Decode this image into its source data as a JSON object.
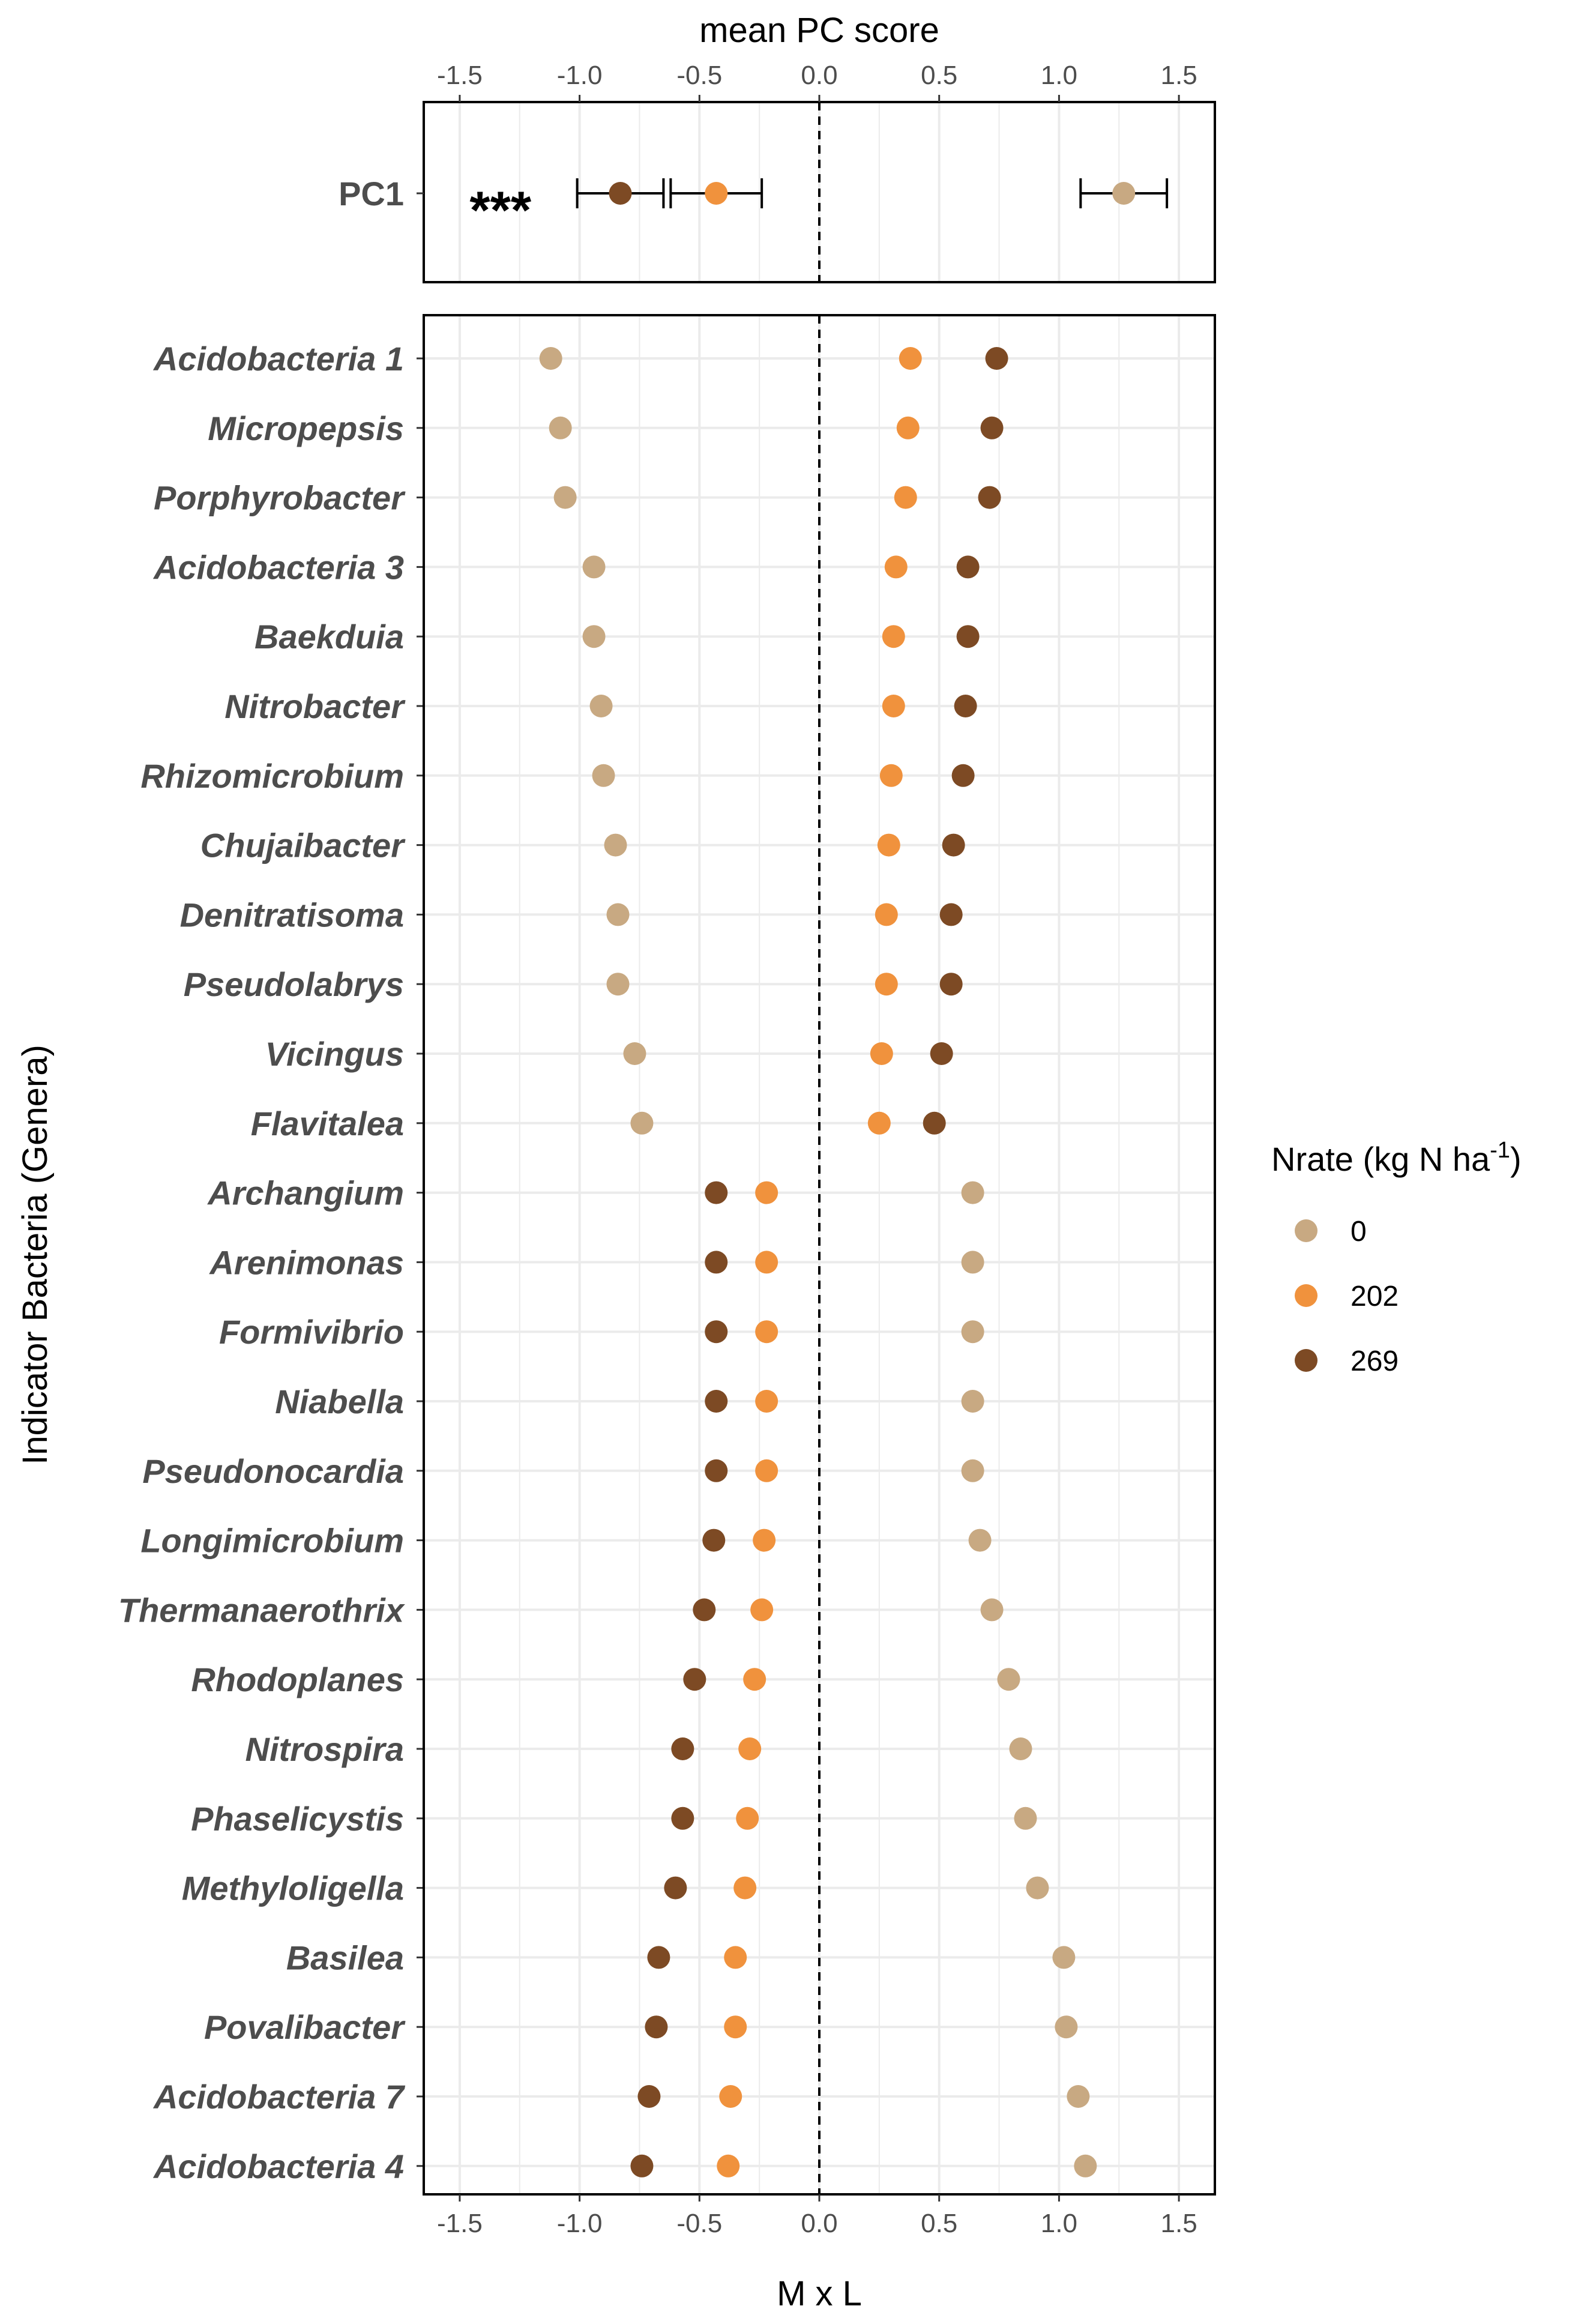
{
  "colors": {
    "n0": "#c8a982",
    "n202": "#f0923d",
    "n269": "#7d4a24",
    "grid": "#ebebeb",
    "axis_text": "#4d4d4d"
  },
  "chart_data": {
    "type": "scatter",
    "top_axis_title": "mean PC score",
    "bottom_axis_title": "M x L",
    "y_axis_title": "Indicator Bacteria (Genera)",
    "xlim": [
      -1.65,
      1.65
    ],
    "ticks": [
      -1.5,
      -1.0,
      -0.5,
      0.0,
      0.5,
      1.0,
      1.5
    ],
    "tick_labels": [
      "-1.5",
      "-1.0",
      "-0.5",
      "0.0",
      "0.5",
      "1.0",
      "1.5"
    ],
    "reference_line_x": 0.0,
    "legend": {
      "title_main": "Nrate (kg N ha",
      "title_sup": "-1",
      "title_end": ")",
      "entries": [
        {
          "label": "0",
          "color_key": "n0"
        },
        {
          "label": "202",
          "color_key": "n202"
        },
        {
          "label": "269",
          "color_key": "n269"
        }
      ]
    },
    "pc_panel": {
      "label": "PC1",
      "significance": "***",
      "points": [
        {
          "series": "0",
          "mean": 1.27,
          "lo": 1.09,
          "hi": 1.45
        },
        {
          "series": "202",
          "mean": -0.43,
          "lo": -0.62,
          "hi": -0.24
        },
        {
          "series": "269",
          "mean": -0.83,
          "lo": -1.01,
          "hi": -0.65
        }
      ]
    },
    "genera": [
      {
        "name": "Acidobacteria 1",
        "n0": -1.12,
        "n202": 0.38,
        "n269": 0.74
      },
      {
        "name": "Micropepsis",
        "n0": -1.08,
        "n202": 0.37,
        "n269": 0.72
      },
      {
        "name": "Porphyrobacter",
        "n0": -1.06,
        "n202": 0.36,
        "n269": 0.71
      },
      {
        "name": "Acidobacteria 3",
        "n0": -0.94,
        "n202": 0.32,
        "n269": 0.62
      },
      {
        "name": "Baekduia",
        "n0": -0.94,
        "n202": 0.31,
        "n269": 0.62
      },
      {
        "name": "Nitrobacter",
        "n0": -0.91,
        "n202": 0.31,
        "n269": 0.61
      },
      {
        "name": "Rhizomicrobium",
        "n0": -0.9,
        "n202": 0.3,
        "n269": 0.6
      },
      {
        "name": "Chujaibacter",
        "n0": -0.85,
        "n202": 0.29,
        "n269": 0.56
      },
      {
        "name": "Denitratisoma",
        "n0": -0.84,
        "n202": 0.28,
        "n269": 0.55
      },
      {
        "name": "Pseudolabrys",
        "n0": -0.84,
        "n202": 0.28,
        "n269": 0.55
      },
      {
        "name": "Vicingus",
        "n0": -0.77,
        "n202": 0.26,
        "n269": 0.51
      },
      {
        "name": "Flavitalea",
        "n0": -0.74,
        "n202": 0.25,
        "n269": 0.48
      },
      {
        "name": "Archangium",
        "n0": 0.64,
        "n202": -0.22,
        "n269": -0.43
      },
      {
        "name": "Arenimonas",
        "n0": 0.64,
        "n202": -0.22,
        "n269": -0.43
      },
      {
        "name": "Formivibrio",
        "n0": 0.64,
        "n202": -0.22,
        "n269": -0.43
      },
      {
        "name": "Niabella",
        "n0": 0.64,
        "n202": -0.22,
        "n269": -0.43
      },
      {
        "name": "Pseudonocardia",
        "n0": 0.64,
        "n202": -0.22,
        "n269": -0.43
      },
      {
        "name": "Longimicrobium",
        "n0": 0.67,
        "n202": -0.23,
        "n269": -0.44
      },
      {
        "name": "Thermanaerothrix",
        "n0": 0.72,
        "n202": -0.24,
        "n269": -0.48
      },
      {
        "name": "Rhodoplanes",
        "n0": 0.79,
        "n202": -0.27,
        "n269": -0.52
      },
      {
        "name": "Nitrospira",
        "n0": 0.84,
        "n202": -0.29,
        "n269": -0.57
      },
      {
        "name": "Phaselicystis",
        "n0": 0.86,
        "n202": -0.3,
        "n269": -0.57
      },
      {
        "name": "Methyloligella",
        "n0": 0.91,
        "n202": -0.31,
        "n269": -0.6
      },
      {
        "name": "Basilea",
        "n0": 1.02,
        "n202": -0.35,
        "n269": -0.67
      },
      {
        "name": "Povalibacter",
        "n0": 1.03,
        "n202": -0.35,
        "n269": -0.68
      },
      {
        "name": "Acidobacteria 7",
        "n0": 1.08,
        "n202": -0.37,
        "n269": -0.71
      },
      {
        "name": "Acidobacteria 4",
        "n0": 1.11,
        "n202": -0.38,
        "n269": -0.74
      }
    ]
  }
}
